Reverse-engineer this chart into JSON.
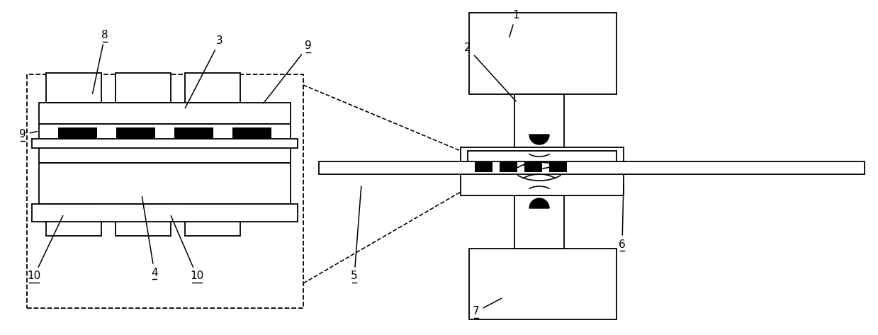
{
  "fig_width": 12.39,
  "fig_height": 4.73,
  "bg_color": "#ffffff",
  "line_color": "#000000",
  "lw": 1.3
}
